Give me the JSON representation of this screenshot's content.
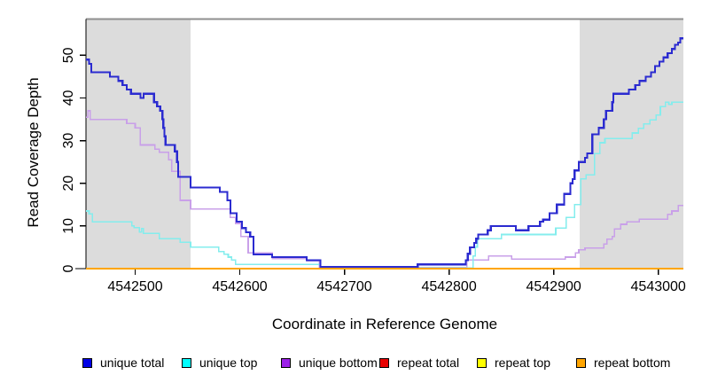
{
  "chart_data": {
    "type": "line",
    "subtype": "step",
    "title": "",
    "xlabel": "Coordinate in Reference Genome",
    "ylabel": "Read Coverage Depth",
    "xlim": [
      4542453,
      4543024
    ],
    "ylim": [
      0,
      58.5
    ],
    "x_ticks": [
      4542500,
      4542600,
      4542700,
      4542800,
      4542900,
      4543000
    ],
    "x_tick_labels": [
      "4542500",
      "4542600",
      "4542700",
      "4542800",
      "4542900",
      "4543000"
    ],
    "y_ticks": [
      0,
      10,
      20,
      30,
      40,
      50
    ],
    "y_tick_labels": [
      "0",
      "10",
      "20",
      "30",
      "40",
      "50"
    ],
    "grid": false,
    "legend_position": "bottom",
    "frame_top_line_color": "#8f8f8f",
    "shade_color": "#dcdcdc",
    "shaded_regions": [
      {
        "x0": 4542453,
        "x1": 4542553
      },
      {
        "x0": 4542925,
        "x1": 4543024
      }
    ],
    "series": [
      {
        "name": "unique bottom",
        "legend_color": "#9b1fe8",
        "line_color": "#c9a0e9",
        "width": 1.6,
        "points": [
          [
            4542453,
            35.5
          ],
          [
            4542455,
            37
          ],
          [
            4542457,
            35
          ],
          [
            4542492,
            34
          ],
          [
            4542500,
            33
          ],
          [
            4542505,
            29
          ],
          [
            4542519,
            28
          ],
          [
            4542523,
            27.3
          ],
          [
            4542532,
            25.5
          ],
          [
            4542535,
            22.8
          ],
          [
            4542543,
            16
          ],
          [
            4542553,
            14
          ],
          [
            4542591,
            12
          ],
          [
            4542596,
            10.6
          ],
          [
            4542601,
            7.5
          ],
          [
            4542608,
            3.7
          ],
          [
            4542631,
            2.4
          ],
          [
            4542664,
            1.8
          ],
          [
            4542676,
            0.3
          ],
          [
            4542817,
            2
          ],
          [
            4542838,
            3
          ],
          [
            4542860,
            2.2
          ],
          [
            4542911,
            2.7
          ],
          [
            4542921,
            3.7
          ],
          [
            4542924,
            4.4
          ],
          [
            4542930,
            4.8
          ],
          [
            4542948,
            5.8
          ],
          [
            4542951,
            6.9
          ],
          [
            4542956,
            7.5
          ],
          [
            4542958,
            9.3
          ],
          [
            4542964,
            10.4
          ],
          [
            4542970,
            11
          ],
          [
            4542982,
            11.6
          ],
          [
            4543009,
            12.7
          ],
          [
            4543013,
            13.5
          ],
          [
            4543019,
            14.8
          ]
        ]
      },
      {
        "name": "unique top",
        "legend_color": "#00ffff",
        "line_color": "#84eded",
        "width": 1.6,
        "points": [
          [
            4542453,
            13.5
          ],
          [
            4542456,
            12.8
          ],
          [
            4542459,
            11
          ],
          [
            4542497,
            10
          ],
          [
            4542499,
            9.6
          ],
          [
            4542504,
            8.6
          ],
          [
            4542506,
            9.4
          ],
          [
            4542508,
            8.3
          ],
          [
            4542523,
            7
          ],
          [
            4542543,
            6.2
          ],
          [
            4542553,
            5
          ],
          [
            4542580,
            4
          ],
          [
            4542585,
            3.4
          ],
          [
            4542589,
            2.7
          ],
          [
            4542592,
            2
          ],
          [
            4542596,
            1
          ],
          [
            4542677,
            0.1
          ],
          [
            4542823,
            3
          ],
          [
            4542825,
            5
          ],
          [
            4542827,
            7
          ],
          [
            4542850,
            8
          ],
          [
            4542902,
            9.5
          ],
          [
            4542912,
            12
          ],
          [
            4542920,
            15
          ],
          [
            4542926,
            21
          ],
          [
            4542931,
            22
          ],
          [
            4542939,
            27
          ],
          [
            4542944,
            29.5
          ],
          [
            4542949,
            30.5
          ],
          [
            4542975,
            31.8
          ],
          [
            4542981,
            32.9
          ],
          [
            4542986,
            33.9
          ],
          [
            4542992,
            34.9
          ],
          [
            4542998,
            36
          ],
          [
            4543002,
            38
          ],
          [
            4543007,
            39
          ],
          [
            4543010,
            38.5
          ],
          [
            4543013,
            39
          ]
        ]
      },
      {
        "name": "unique total",
        "legend_color": "#0000e6",
        "line_color": "#2b2bd0",
        "width": 2.2,
        "points": [
          [
            4542453,
            49
          ],
          [
            4542456,
            48
          ],
          [
            4542458,
            46
          ],
          [
            4542476,
            45
          ],
          [
            4542484,
            44
          ],
          [
            4542488,
            43
          ],
          [
            4542492,
            42
          ],
          [
            4542496,
            41
          ],
          [
            4542505,
            40
          ],
          [
            4542508,
            41
          ],
          [
            4542518,
            39
          ],
          [
            4542521,
            38
          ],
          [
            4542524,
            37
          ],
          [
            4542526,
            35
          ],
          [
            4542527,
            33
          ],
          [
            4542528,
            31
          ],
          [
            4542529,
            29
          ],
          [
            4542538,
            27.5
          ],
          [
            4542540,
            25
          ],
          [
            4542541,
            21.5
          ],
          [
            4542553,
            19
          ],
          [
            4542581,
            18
          ],
          [
            4542588,
            16
          ],
          [
            4542591,
            13
          ],
          [
            4542597,
            11
          ],
          [
            4542602,
            9.5
          ],
          [
            4542606,
            8.5
          ],
          [
            4542610,
            7.5
          ],
          [
            4542613,
            3.3
          ],
          [
            4542631,
            2.7
          ],
          [
            4542664,
            2
          ],
          [
            4542677,
            0.4
          ],
          [
            4542770,
            1
          ],
          [
            4542816,
            2
          ],
          [
            4542818,
            3.5
          ],
          [
            4542820,
            5
          ],
          [
            4542824,
            6
          ],
          [
            4542826,
            7
          ],
          [
            4542828,
            8
          ],
          [
            4542837,
            9
          ],
          [
            4542840,
            10
          ],
          [
            4542864,
            9
          ],
          [
            4542876,
            10
          ],
          [
            4542887,
            11
          ],
          [
            4542890,
            11.5
          ],
          [
            4542896,
            13
          ],
          [
            4542903,
            15
          ],
          [
            4542910,
            17.5
          ],
          [
            4542916,
            20
          ],
          [
            4542918,
            21
          ],
          [
            4542920,
            23
          ],
          [
            4542924,
            25
          ],
          [
            4542930,
            26
          ],
          [
            4542932,
            27
          ],
          [
            4542937,
            31.5
          ],
          [
            4542943,
            33
          ],
          [
            4542948,
            35
          ],
          [
            4542950,
            37
          ],
          [
            4542956,
            39
          ],
          [
            4542957,
            41
          ],
          [
            4542972,
            42
          ],
          [
            4542978,
            43
          ],
          [
            4542982,
            44
          ],
          [
            4542988,
            45
          ],
          [
            4542993,
            46
          ],
          [
            4542997,
            47.5
          ],
          [
            4543001,
            48.5
          ],
          [
            4543005,
            49.5
          ],
          [
            4543009,
            50.5
          ],
          [
            4543013,
            51.5
          ],
          [
            4543016,
            52.5
          ],
          [
            4543019,
            53
          ],
          [
            4543021,
            54
          ]
        ]
      },
      {
        "name": "repeat total",
        "legend_color": "#e80000",
        "line_color": "#e80000",
        "width": 1.6,
        "points": [
          [
            4542453,
            0
          ]
        ]
      },
      {
        "name": "repeat top",
        "legend_color": "#ffff00",
        "line_color": "#ffff00",
        "width": 1.6,
        "points": [
          [
            4542453,
            0
          ]
        ]
      },
      {
        "name": "repeat bottom",
        "legend_color": "#ffa500",
        "line_color": "#ffa500",
        "width": 2,
        "points": [
          [
            4542453,
            0
          ]
        ]
      }
    ],
    "legend_order": [
      "unique total",
      "unique top",
      "unique bottom",
      "repeat total",
      "repeat top",
      "repeat bottom"
    ]
  }
}
